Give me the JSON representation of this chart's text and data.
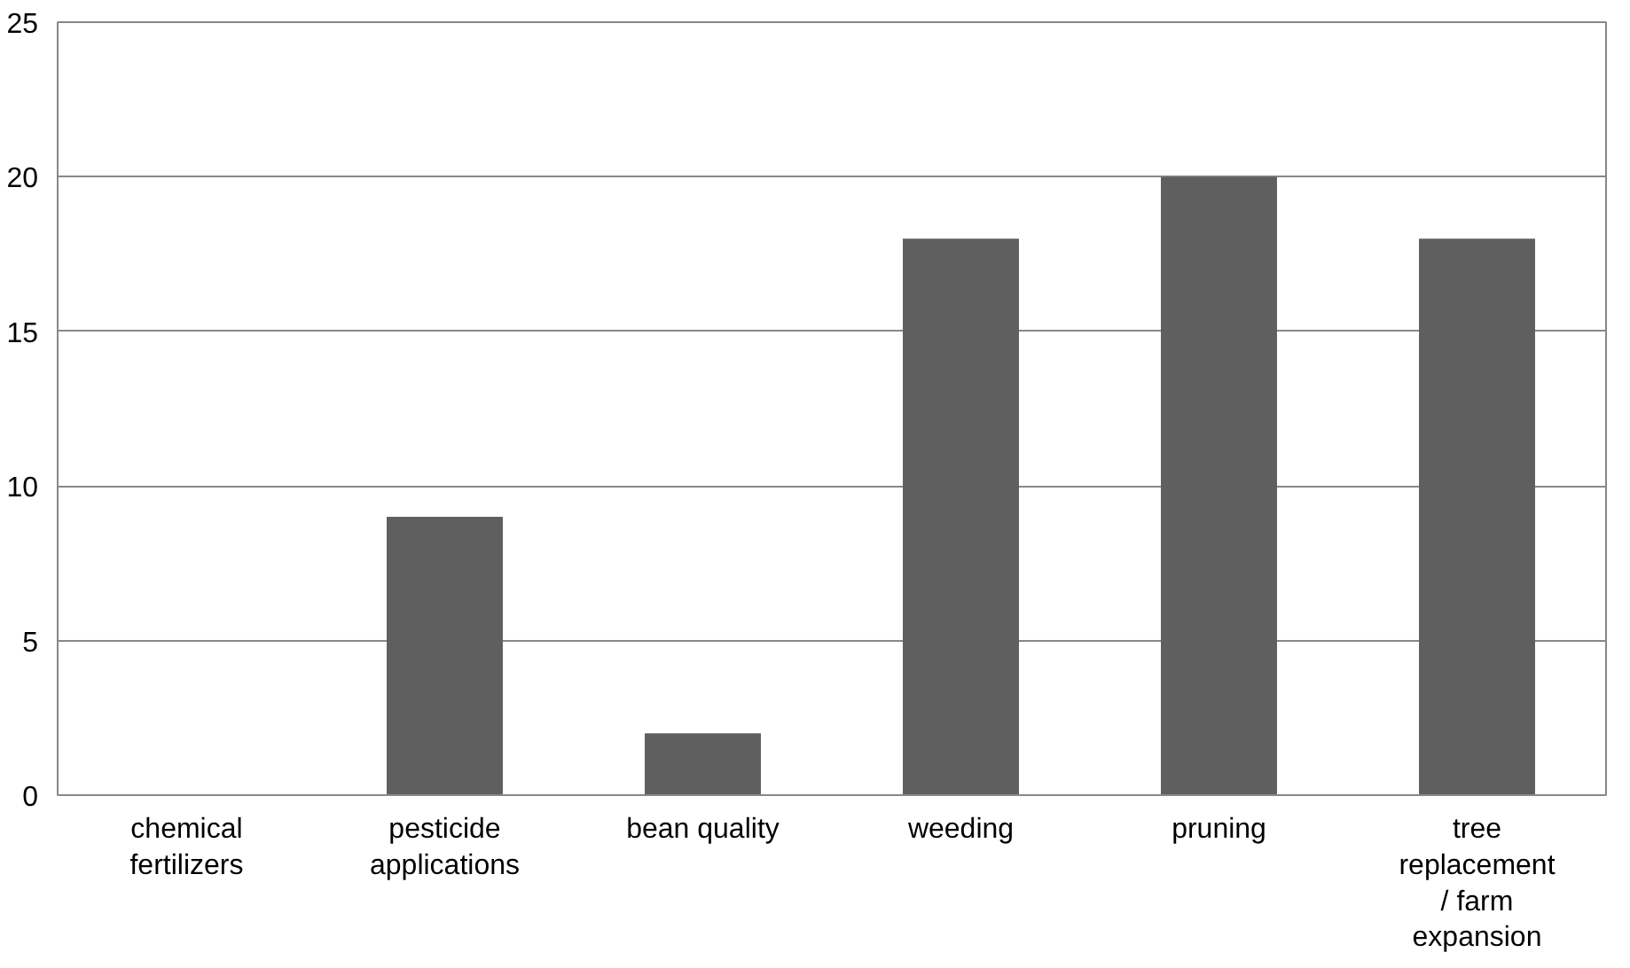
{
  "chart_data": {
    "type": "bar",
    "categories": [
      "chemical fertilizers",
      "pesticide applications",
      "bean quality",
      "weeding",
      "pruning",
      "tree replacement / farm expansion"
    ],
    "values": [
      0,
      9,
      2,
      18,
      20,
      18
    ],
    "color": "#5f5f5f",
    "ylim": [
      0,
      25
    ],
    "yticks": [
      0,
      5,
      10,
      15,
      20,
      25
    ],
    "grid": "y"
  }
}
